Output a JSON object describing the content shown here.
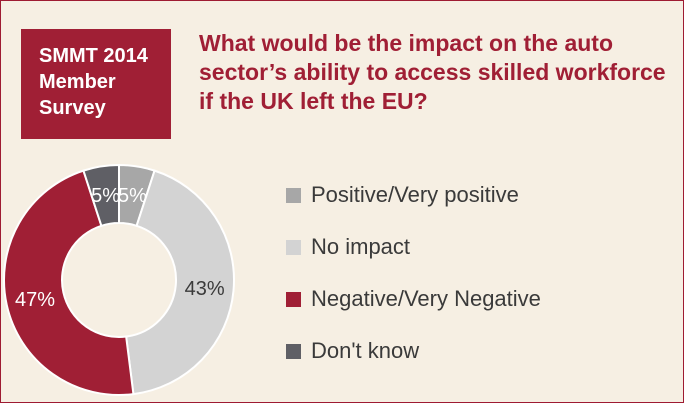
{
  "badge": {
    "lines": [
      "SMMT 2014",
      "Member",
      "Survey"
    ]
  },
  "title": {
    "lines": [
      "What would be the impact on the auto",
      "sector’s ability to access skilled workforce",
      "if the UK left the EU?"
    ]
  },
  "colors": {
    "accent": "#a01f35",
    "background": "#f6efe3"
  },
  "chart_data": {
    "type": "pie",
    "donut": true,
    "title": "",
    "categories": [
      "Positive/Very positive",
      "No impact",
      "Negative/Very Negative",
      "Don't know"
    ],
    "values": [
      5,
      43,
      47,
      5
    ],
    "labels": [
      "5%",
      "43%",
      "47%",
      "5%"
    ],
    "colors": [
      "#a7a7a7",
      "#d3d3d3",
      "#a01f35",
      "#5f5f65"
    ],
    "legend_position": "right"
  }
}
